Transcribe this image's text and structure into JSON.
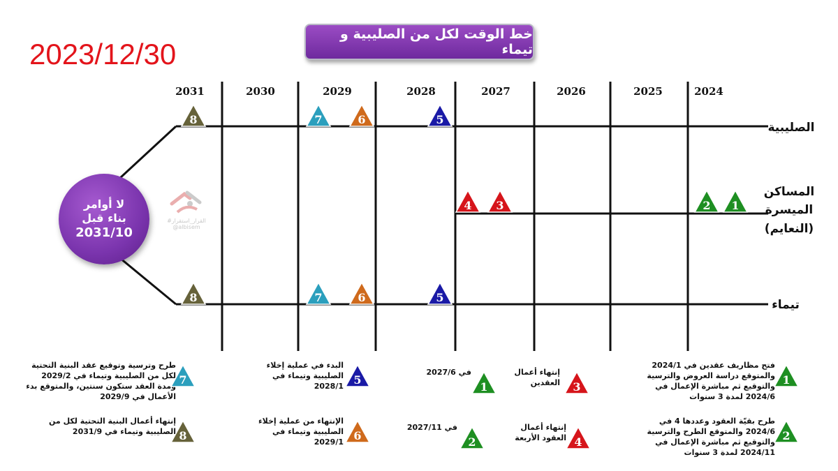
{
  "date": "2023/12/30",
  "title": "خط الوقت لكل من الصليبية و تيماء",
  "years": [
    "2031",
    "2030",
    "2029",
    "2028",
    "2027",
    "2026",
    "2025",
    "2024"
  ],
  "rows": {
    "sulaibiya": "الصليبية",
    "housing_line1": "المساكن",
    "housing_line2": "الميسرة",
    "housing_line3": "(النعايم)",
    "taima": "تيماء"
  },
  "circle": {
    "line1": "لا أوامر",
    "line2": "بناء قبل",
    "line3": "2031/10"
  },
  "watermark": {
    "line1": "#القرار_استقرار",
    "line2": "@albisem"
  },
  "colors": {
    "green": "#1e8f22",
    "red": "#d6151b",
    "blue": "#1a1aa6",
    "teal": "#2b9fbd",
    "orange": "#cf6a1c",
    "olive": "#66623a"
  },
  "markers": [
    {
      "row": "sulaibiya",
      "color": "olive",
      "num": "8"
    },
    {
      "row": "sulaibiya",
      "color": "teal",
      "num": "7"
    },
    {
      "row": "sulaibiya",
      "color": "orange",
      "num": "6"
    },
    {
      "row": "sulaibiya",
      "color": "blue",
      "num": "5"
    },
    {
      "row": "housing",
      "color": "red",
      "num": "4"
    },
    {
      "row": "housing",
      "color": "red",
      "num": "3"
    },
    {
      "row": "housing",
      "color": "green",
      "num": "2"
    },
    {
      "row": "housing",
      "color": "green",
      "num": "1"
    },
    {
      "row": "taima",
      "color": "olive",
      "num": "8"
    },
    {
      "row": "taima",
      "color": "teal",
      "num": "7"
    },
    {
      "row": "taima",
      "color": "orange",
      "num": "6"
    },
    {
      "row": "taima",
      "color": "blue",
      "num": "5"
    }
  ],
  "legend": [
    {
      "color": "teal",
      "num": "7",
      "text": "طرح وترسية وتوقيع عقد البنية التحتية لكل من الصليبية وتيماء في 2029/2 ومدة العقد ستكون سنتين، والمتوقع بدء الأعمال في 2029/9"
    },
    {
      "color": "blue",
      "num": "5",
      "text": "البدء في عملية إخلاء الصليبية وتيماء في 2028/1"
    },
    {
      "color": "green",
      "num": "1",
      "text": "في 2027/6"
    },
    {
      "color": "red",
      "num": "3",
      "text": "إنتهاء أعمال العقدين"
    },
    {
      "color": "green",
      "num": "1",
      "text": "فتح مظاريف عقدين في 2024/1 والمتوقع دراسة العروض والترسية والتوقيع ثم مباشرة الإعمال في 2024/6 لمدة 3 سنوات"
    },
    {
      "color": "olive",
      "num": "8",
      "text": "إنتهاء أعمال البنية التحتية لكل من الصليبية وتيماء في 2031/9"
    },
    {
      "color": "orange",
      "num": "6",
      "text": "الإنتهاء من عملية إخلاء الصليبية وتيماء في 2029/1"
    },
    {
      "color": "green",
      "num": "2",
      "text": "في 2027/11"
    },
    {
      "color": "red",
      "num": "4",
      "text": "إنتهاء أعمال العقود الأربعة"
    },
    {
      "color": "green",
      "num": "2",
      "text": "طرح بقيّة العقود وعددها 4 في 2024/6 والمتوقع الطرح والترسية والتوقيع ثم مباشرة الإعمال في 2024/11 لمدة 3 سنوات"
    }
  ]
}
